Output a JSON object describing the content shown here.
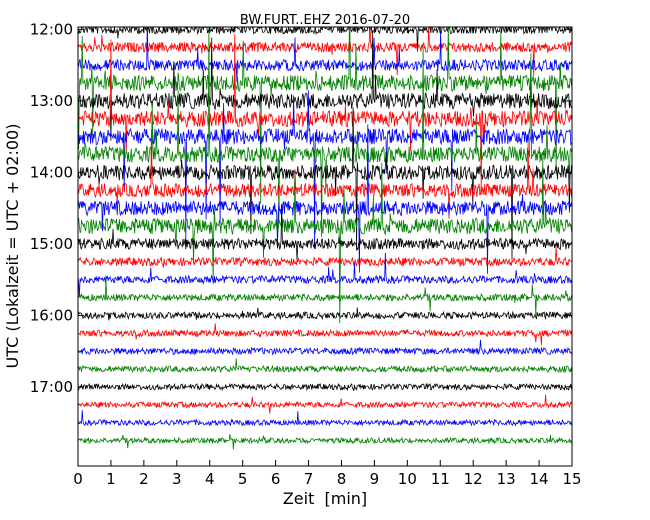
{
  "chart_data": {
    "type": "line",
    "title": "BW.FURT..EHZ 2016-07-20",
    "xlabel": "Zeit  [min]",
    "ylabel": "UTC (Lokalzeit = UTC + 02:00)",
    "xlim": [
      0,
      15
    ],
    "x_ticks": [
      "0",
      "1",
      "2",
      "3",
      "4",
      "5",
      "6",
      "7",
      "8",
      "9",
      "10",
      "11",
      "12",
      "13",
      "14",
      "15"
    ],
    "y_ticks": [
      "12:00",
      "13:00",
      "14:00",
      "15:00",
      "16:00",
      "17:00"
    ],
    "trace_interval_min": 15,
    "trace_colors": [
      "#000000",
      "#ff0000",
      "#0000ff",
      "#008000"
    ],
    "traces": [
      {
        "start": "12:00",
        "activity": 0.4
      },
      {
        "start": "12:15",
        "activity": 0.5
      },
      {
        "start": "12:30",
        "activity": 0.6
      },
      {
        "start": "12:45",
        "activity": 1.0
      },
      {
        "start": "13:00",
        "activity": 1.0
      },
      {
        "start": "13:15",
        "activity": 1.0
      },
      {
        "start": "13:30",
        "activity": 1.0
      },
      {
        "start": "13:45",
        "activity": 1.0
      },
      {
        "start": "14:00",
        "activity": 0.9
      },
      {
        "start": "14:15",
        "activity": 0.8
      },
      {
        "start": "14:30",
        "activity": 0.9
      },
      {
        "start": "14:45",
        "activity": 1.0
      },
      {
        "start": "15:00",
        "activity": 0.6
      },
      {
        "start": "15:15",
        "activity": 0.35
      },
      {
        "start": "15:30",
        "activity": 0.3
      },
      {
        "start": "15:45",
        "activity": 0.25
      },
      {
        "start": "16:00",
        "activity": 0.22
      },
      {
        "start": "16:15",
        "activity": 0.2
      },
      {
        "start": "16:30",
        "activity": 0.2
      },
      {
        "start": "16:45",
        "activity": 0.18
      },
      {
        "start": "17:00",
        "activity": 0.15
      },
      {
        "start": "17:15",
        "activity": 0.13
      },
      {
        "start": "17:30",
        "activity": 0.12
      },
      {
        "start": "17:45",
        "activity": 0.1
      }
    ]
  }
}
